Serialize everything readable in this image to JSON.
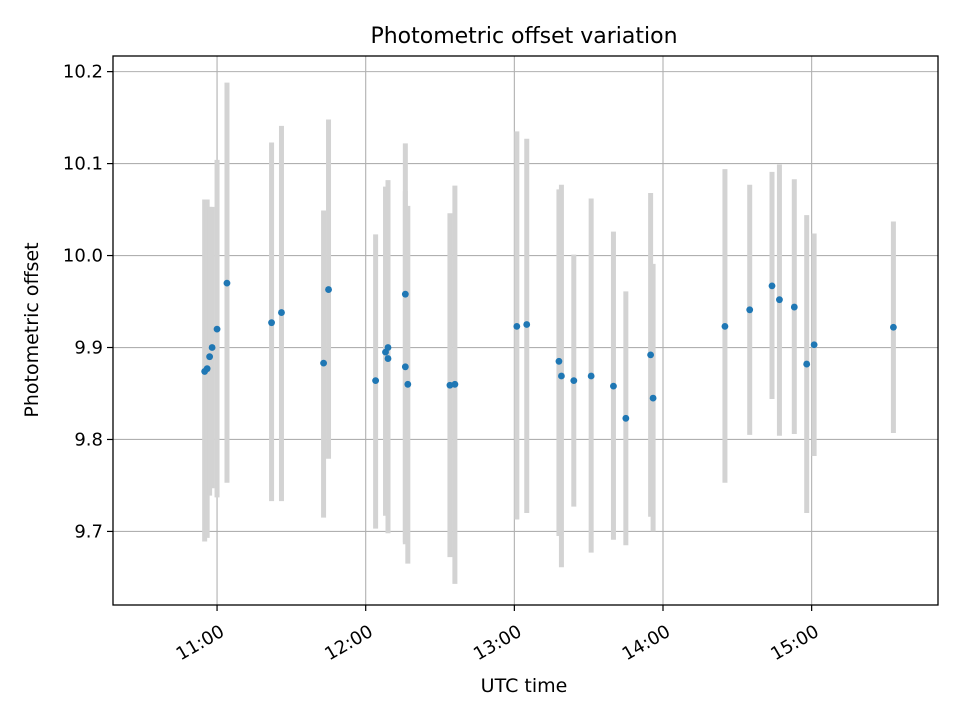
{
  "chart_data": {
    "type": "scatter",
    "title": "Photometric offset variation",
    "xlabel": "UTC time",
    "ylabel": "Photometric offset",
    "xlim_hours": [
      10.3,
      15.85
    ],
    "ylim": [
      9.62,
      10.217
    ],
    "grid": true,
    "error_bar_color": "#d3d3d3",
    "point_color": "#1f77b4",
    "x_ticks": [
      {
        "label": "11:00",
        "value": 11.0
      },
      {
        "label": "12:00",
        "value": 12.0
      },
      {
        "label": "13:00",
        "value": 13.0
      },
      {
        "label": "14:00",
        "value": 14.0
      },
      {
        "label": "15:00",
        "value": 15.0
      }
    ],
    "y_ticks": [
      {
        "label": "9.7",
        "value": 9.7
      },
      {
        "label": "9.8",
        "value": 9.8
      },
      {
        "label": "9.9",
        "value": 9.9
      },
      {
        "label": "10.0",
        "value": 10.0
      },
      {
        "label": "10.1",
        "value": 10.1
      },
      {
        "label": "10.2",
        "value": 10.2
      }
    ],
    "series": [
      {
        "points": [
          {
            "x": "10:55",
            "y": 9.874,
            "err_low": 9.689,
            "err_high": 10.061
          },
          {
            "x": "10:56",
            "y": 9.877,
            "err_low": 9.693,
            "err_high": 10.061
          },
          {
            "x": "10:57",
            "y": 9.89,
            "err_low": 9.739,
            "err_high": 10.053
          },
          {
            "x": "10:58",
            "y": 9.9,
            "err_low": 9.747,
            "err_high": 10.053
          },
          {
            "x": "11:00",
            "y": 9.92,
            "err_low": 9.737,
            "err_high": 10.104
          },
          {
            "x": "11:04",
            "y": 9.97,
            "err_low": 9.753,
            "err_high": 10.188
          },
          {
            "x": "11:22",
            "y": 9.927,
            "err_low": 9.733,
            "err_high": 10.123
          },
          {
            "x": "11:26",
            "y": 9.938,
            "err_low": 9.733,
            "err_high": 10.141
          },
          {
            "x": "11:43",
            "y": 9.883,
            "err_low": 9.715,
            "err_high": 10.049
          },
          {
            "x": "11:45",
            "y": 9.963,
            "err_low": 9.779,
            "err_high": 10.148
          },
          {
            "x": "12:04",
            "y": 9.864,
            "err_low": 9.703,
            "err_high": 10.023
          },
          {
            "x": "12:08",
            "y": 9.895,
            "err_low": 9.717,
            "err_high": 10.075
          },
          {
            "x": "12:09",
            "y": 9.9,
            "err_low": 9.718,
            "err_high": 10.082
          },
          {
            "x": "12:09",
            "y": 9.888,
            "err_low": 9.698,
            "err_high": 10.078
          },
          {
            "x": "12:16",
            "y": 9.958,
            "err_low": 9.686,
            "err_high": 10.122
          },
          {
            "x": "12:16",
            "y": 9.879,
            "err_low": 9.688,
            "err_high": 10.07
          },
          {
            "x": "12:17",
            "y": 9.86,
            "err_low": 9.665,
            "err_high": 10.054
          },
          {
            "x": "12:34",
            "y": 9.859,
            "err_low": 9.672,
            "err_high": 10.046
          },
          {
            "x": "12:36",
            "y": 9.86,
            "err_low": 9.643,
            "err_high": 10.076
          },
          {
            "x": "13:01",
            "y": 9.923,
            "err_low": 9.713,
            "err_high": 10.135
          },
          {
            "x": "13:05",
            "y": 9.925,
            "err_low": 9.72,
            "err_high": 10.127
          },
          {
            "x": "13:18",
            "y": 9.885,
            "err_low": 9.695,
            "err_high": 10.072
          },
          {
            "x": "13:19",
            "y": 9.869,
            "err_low": 9.661,
            "err_high": 10.077
          },
          {
            "x": "13:24",
            "y": 9.864,
            "err_low": 9.727,
            "err_high": 10.001
          },
          {
            "x": "13:31",
            "y": 9.869,
            "err_low": 9.677,
            "err_high": 10.062
          },
          {
            "x": "13:40",
            "y": 9.858,
            "err_low": 9.691,
            "err_high": 10.026
          },
          {
            "x": "13:45",
            "y": 9.823,
            "err_low": 9.685,
            "err_high": 9.961
          },
          {
            "x": "13:55",
            "y": 9.892,
            "err_low": 9.716,
            "err_high": 10.068
          },
          {
            "x": "13:56",
            "y": 9.845,
            "err_low": 9.7,
            "err_high": 9.991
          },
          {
            "x": "14:25",
            "y": 9.923,
            "err_low": 9.753,
            "err_high": 10.094
          },
          {
            "x": "14:35",
            "y": 9.941,
            "err_low": 9.805,
            "err_high": 10.077
          },
          {
            "x": "14:44",
            "y": 9.967,
            "err_low": 9.844,
            "err_high": 10.091
          },
          {
            "x": "14:47",
            "y": 9.952,
            "err_low": 9.804,
            "err_high": 10.099
          },
          {
            "x": "14:53",
            "y": 9.944,
            "err_low": 9.806,
            "err_high": 10.083
          },
          {
            "x": "14:58",
            "y": 9.882,
            "err_low": 9.72,
            "err_high": 10.044
          },
          {
            "x": "15:01",
            "y": 9.903,
            "err_low": 9.782,
            "err_high": 10.024
          },
          {
            "x": "15:33",
            "y": 9.922,
            "err_low": 9.807,
            "err_high": 10.037
          }
        ]
      }
    ]
  }
}
